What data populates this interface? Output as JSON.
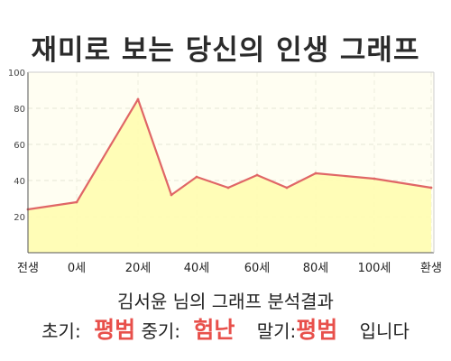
{
  "title": "재미로 보는 당신의 인생 그래프",
  "chart_data": {
    "type": "area",
    "x_labels": [
      "전생",
      "0세",
      "20세",
      "40세",
      "60세",
      "80세",
      "100세",
      "환생"
    ],
    "points": [
      {
        "x": "전생",
        "y": 24
      },
      {
        "x": "0세",
        "y": 28
      },
      {
        "x": "20세",
        "y": 85
      },
      {
        "x": "25세",
        "y": 32
      },
      {
        "x": "40세",
        "y": 42
      },
      {
        "x": "50세",
        "y": 36
      },
      {
        "x": "60세",
        "y": 43
      },
      {
        "x": "70세",
        "y": 36
      },
      {
        "x": "80세",
        "y": 44
      },
      {
        "x": "100세",
        "y": 41
      },
      {
        "x": "환생",
        "y": 36
      }
    ],
    "yticks": [
      20,
      40,
      60,
      80,
      100
    ],
    "ylim": [
      0,
      100
    ],
    "grid": true,
    "line_color": "#e06666",
    "fill_color": "#fffdb0"
  },
  "summary": {
    "name": "김서윤",
    "suffix": " 님의 그래프 분석결과"
  },
  "verdict": {
    "early_label": "초기:",
    "early_value": "평범",
    "mid_label": "중기:",
    "mid_value": "험난",
    "late_label": "말기:",
    "late_value": "평범",
    "ending": "입니다"
  },
  "colors": {
    "accent": "#e8504b",
    "plot_bg": "#fffef2"
  }
}
